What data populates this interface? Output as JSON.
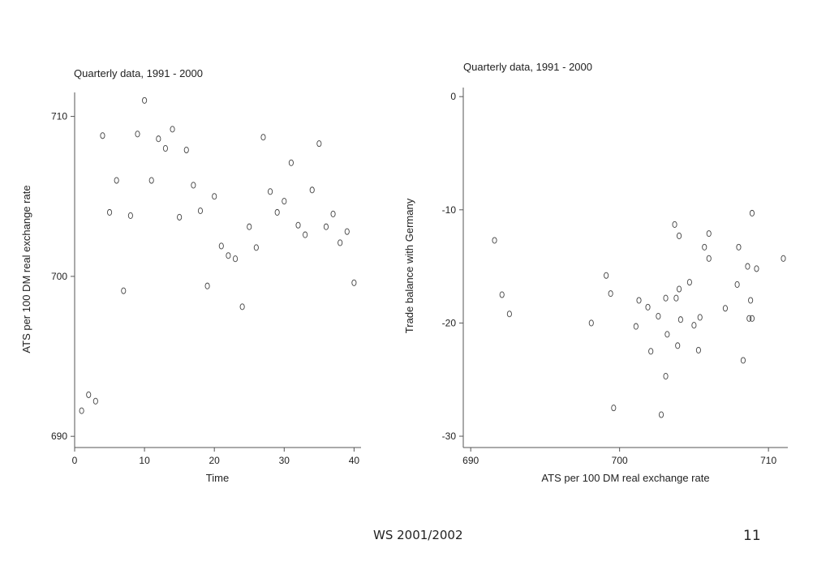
{
  "footer": {
    "course": "WS 2001/2002",
    "page_number": "11"
  },
  "chart_data": [
    {
      "type": "scatter",
      "title": "Quarterly data, 1991 - 2000",
      "xlabel": "Time",
      "ylabel": "ATS per 100 DM real exchange rate",
      "xlim": [
        0,
        41
      ],
      "ylim": [
        689.3,
        711.5
      ],
      "xticks": [
        0,
        10,
        20,
        30,
        40
      ],
      "yticks": [
        690,
        700,
        710
      ],
      "marker": "hollow-circle",
      "x": [
        1,
        2,
        3,
        4,
        5,
        6,
        7,
        8,
        9,
        10,
        11,
        12,
        13,
        14,
        15,
        16,
        17,
        18,
        19,
        20,
        21,
        22,
        23,
        24,
        25,
        26,
        27,
        28,
        29,
        30,
        31,
        32,
        33,
        34,
        35,
        36,
        37,
        38,
        39,
        40
      ],
      "y": [
        691.6,
        692.6,
        692.2,
        708.8,
        704.0,
        706.0,
        699.1,
        703.8,
        708.9,
        711.0,
        706.0,
        708.6,
        708.0,
        709.2,
        703.7,
        707.9,
        705.7,
        704.1,
        699.4,
        705.0,
        701.9,
        701.3,
        701.1,
        698.1,
        703.1,
        701.8,
        708.7,
        705.3,
        704.0,
        704.7,
        707.1,
        703.2,
        702.6,
        705.4,
        708.3,
        703.1,
        703.9,
        702.1,
        702.8,
        699.6
      ]
    },
    {
      "type": "scatter",
      "title": "Quarterly data, 1991 - 2000",
      "xlabel": "ATS per 100 DM real exchange rate",
      "ylabel": "Trade balance with Germany",
      "xlim": [
        689.5,
        711.3
      ],
      "ylim": [
        -31.0,
        0.8
      ],
      "xticks": [
        690,
        700,
        710
      ],
      "yticks": [
        0,
        -10,
        -20,
        -30
      ],
      "marker": "hollow-circle",
      "x": [
        691.6,
        692.1,
        692.6,
        698.1,
        699.1,
        699.4,
        699.6,
        701.1,
        701.3,
        701.9,
        702.1,
        702.6,
        702.8,
        703.1,
        703.1,
        703.2,
        703.7,
        703.8,
        703.9,
        704.0,
        704.0,
        704.1,
        704.7,
        705.0,
        705.3,
        705.4,
        705.7,
        706.0,
        706.0,
        707.1,
        707.9,
        708.0,
        708.3,
        708.6,
        708.7,
        708.8,
        708.9,
        708.9,
        709.2,
        711.0
      ],
      "y": [
        -12.7,
        -17.5,
        -19.2,
        -20.0,
        -15.8,
        -17.4,
        -27.5,
        -20.3,
        -18.0,
        -18.6,
        -22.5,
        -19.4,
        -28.1,
        -17.8,
        -24.7,
        -21.0,
        -11.3,
        -17.8,
        -22.0,
        -17.0,
        -12.3,
        -19.7,
        -16.4,
        -20.2,
        -22.4,
        -19.5,
        -13.3,
        -12.1,
        -14.3,
        -18.7,
        -16.6,
        -13.3,
        -23.3,
        -15.0,
        -19.6,
        -18.0,
        -10.3,
        -19.6,
        -15.2,
        -14.3
      ]
    }
  ]
}
